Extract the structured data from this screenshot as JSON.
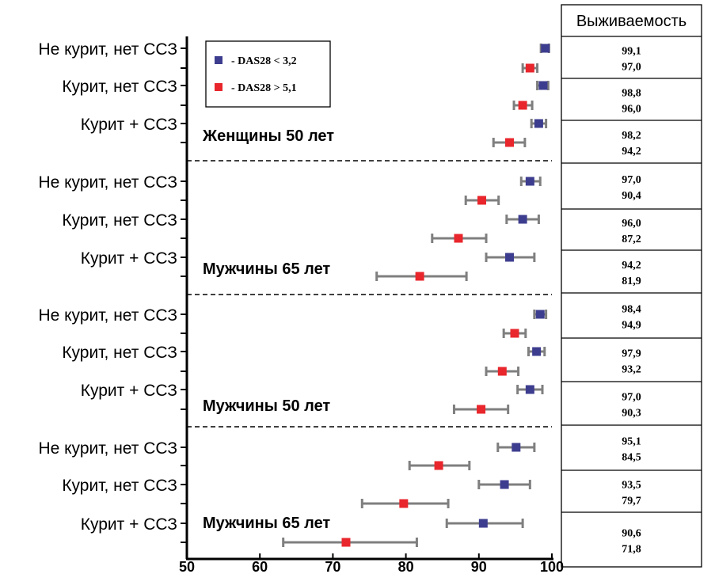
{
  "chart_data": {
    "type": "forest",
    "xlim": [
      50,
      100
    ],
    "xticks": [
      "50",
      "60",
      "70",
      "80",
      "90",
      "100"
    ],
    "legend": [
      {
        "label": "- DAS28 < 3,2",
        "color": "#3d3d8f"
      },
      {
        "label": "- DAS28 > 5,1",
        "color": "#e8262c"
      }
    ],
    "error_bar_color": "#7f7f7f",
    "survival_header": "Выживаемость",
    "groups": [
      {
        "label": "Женщины 50 лет",
        "rows": [
          {
            "label": "Не курит, нет ССЗ",
            "low": {
              "value": 99.1,
              "ci": [
                98.5,
                99.6
              ],
              "text": "99,1"
            },
            "high": {
              "value": 97.0,
              "ci": [
                96.0,
                98.0
              ],
              "text": "97,0"
            }
          },
          {
            "label": "Курит, нет ССЗ",
            "low": {
              "value": 98.8,
              "ci": [
                98.0,
                99.5
              ],
              "text": "98,8"
            },
            "high": {
              "value": 96.0,
              "ci": [
                94.8,
                97.3
              ],
              "text": "96,0"
            }
          },
          {
            "label": "Курит + ССЗ",
            "low": {
              "value": 98.2,
              "ci": [
                97.2,
                99.2
              ],
              "text": "98,2"
            },
            "high": {
              "value": 94.2,
              "ci": [
                92.0,
                96.3
              ],
              "text": "94,2"
            }
          }
        ]
      },
      {
        "label": "Мужчины 65 лет",
        "rows": [
          {
            "label": "Не курит, нет ССЗ",
            "low": {
              "value": 97.0,
              "ci": [
                95.8,
                98.4
              ],
              "text": "97,0"
            },
            "high": {
              "value": 90.4,
              "ci": [
                88.2,
                92.7
              ],
              "text": "90,4"
            }
          },
          {
            "label": "Курит, нет ССЗ",
            "low": {
              "value": 96.0,
              "ci": [
                93.8,
                98.2
              ],
              "text": "96,0"
            },
            "high": {
              "value": 87.2,
              "ci": [
                83.6,
                91.0
              ],
              "text": "87,2"
            }
          },
          {
            "label": "Курит + ССЗ",
            "low": {
              "value": 94.2,
              "ci": [
                91.0,
                97.6
              ],
              "text": "94,2"
            },
            "high": {
              "value": 81.9,
              "ci": [
                76.0,
                88.3
              ],
              "text": "81,9"
            }
          }
        ]
      },
      {
        "label": "Мужчины 50 лет",
        "rows": [
          {
            "label": "Не курит, нет ССЗ",
            "low": {
              "value": 98.4,
              "ci": [
                97.6,
                99.2
              ],
              "text": "98,4"
            },
            "high": {
              "value": 94.9,
              "ci": [
                93.4,
                96.4
              ],
              "text": "94,9"
            }
          },
          {
            "label": "Курит, нет ССЗ",
            "low": {
              "value": 97.9,
              "ci": [
                96.8,
                99.0
              ],
              "text": "97,9"
            },
            "high": {
              "value": 93.2,
              "ci": [
                91.0,
                95.4
              ],
              "text": "93,2"
            }
          },
          {
            "label": "Курит + ССЗ",
            "low": {
              "value": 97.0,
              "ci": [
                95.3,
                98.7
              ],
              "text": "97,0"
            },
            "high": {
              "value": 90.3,
              "ci": [
                86.6,
                94.0
              ],
              "text": "90,3"
            }
          }
        ]
      },
      {
        "label": "Мужчины 65 лет",
        "rows": [
          {
            "label": "Не курит, нет ССЗ",
            "low": {
              "value": 95.1,
              "ci": [
                92.6,
                97.6
              ],
              "text": "95,1"
            },
            "high": {
              "value": 84.5,
              "ci": [
                80.5,
                88.7
              ],
              "text": "84,5"
            }
          },
          {
            "label": "Курит, нет ССЗ",
            "low": {
              "value": 93.5,
              "ci": [
                90.0,
                97.0
              ],
              "text": "93,5"
            },
            "high": {
              "value": 79.7,
              "ci": [
                74.0,
                85.8
              ],
              "text": "79,7"
            }
          },
          {
            "label": "Курит + ССЗ",
            "low": {
              "value": 90.6,
              "ci": [
                85.6,
                96.0
              ],
              "text": "90,6"
            },
            "high": {
              "value": 71.8,
              "ci": [
                63.2,
                81.5
              ],
              "text": "71,8"
            }
          }
        ]
      }
    ]
  }
}
